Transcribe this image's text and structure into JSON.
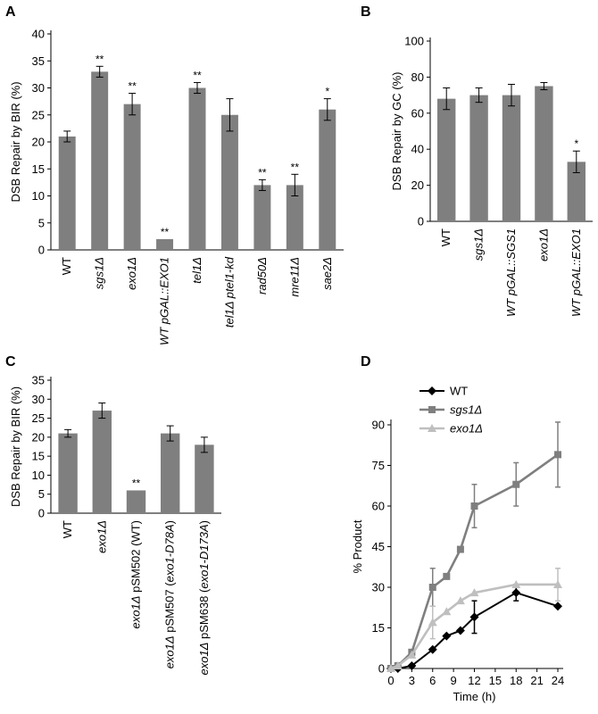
{
  "panels": [
    {
      "id": "A",
      "label": "A"
    },
    {
      "id": "B",
      "label": "B"
    },
    {
      "id": "C",
      "label": "C"
    },
    {
      "id": "D",
      "label": "D"
    }
  ],
  "colors": {
    "bar": "#7f7f7f",
    "wt": "#000000",
    "sgs1": "#7f7f7f",
    "exo1": "#bfbfbf",
    "axis": "#000000"
  },
  "chart_data": [
    {
      "panel": "A",
      "type": "bar",
      "ylabel": "DSB Repair by BIR (%)",
      "ylim": [
        0,
        40
      ],
      "yticks": [
        0,
        5,
        10,
        15,
        20,
        25,
        30,
        35,
        40
      ],
      "categories": [
        [
          {
            "t": "WT",
            "i": false
          }
        ],
        [
          {
            "t": "sgs1Δ",
            "i": true
          }
        ],
        [
          {
            "t": "exo1Δ",
            "i": true
          }
        ],
        [
          {
            "t": "WT pGAL::EXO1",
            "i": true
          }
        ],
        [
          {
            "t": "tel1Δ",
            "i": true
          }
        ],
        [
          {
            "t": "tel1Δ ptel1-kd",
            "i": true
          }
        ],
        [
          {
            "t": "rad50Δ",
            "i": true
          }
        ],
        [
          {
            "t": "mre11Δ",
            "i": true
          }
        ],
        [
          {
            "t": "sae2Δ",
            "i": true
          }
        ]
      ],
      "values": [
        21,
        33,
        27,
        2,
        30,
        25,
        12,
        12,
        26
      ],
      "errors": [
        1,
        1,
        2,
        0,
        1,
        3,
        1,
        2,
        2
      ],
      "significance": [
        "",
        "**",
        "**",
        "**",
        "**",
        "",
        "**",
        "**",
        "*"
      ]
    },
    {
      "panel": "B",
      "type": "bar",
      "ylabel": "DSB Repair by GC (%)",
      "ylim": [
        0,
        100
      ],
      "yticks": [
        0,
        20,
        40,
        60,
        80,
        100
      ],
      "categories": [
        [
          {
            "t": "WT",
            "i": false
          }
        ],
        [
          {
            "t": "sgs1Δ",
            "i": true
          }
        ],
        [
          {
            "t": "WT pGAL::SGS1",
            "i": true
          }
        ],
        [
          {
            "t": "exo1Δ",
            "i": true
          }
        ],
        [
          {
            "t": "WT pGAL::EXO1",
            "i": true
          }
        ]
      ],
      "values": [
        68,
        70,
        70,
        75,
        33
      ],
      "errors": [
        6,
        4,
        6,
        2,
        6
      ],
      "significance": [
        "",
        "",
        "",
        "",
        "*"
      ]
    },
    {
      "panel": "C",
      "type": "bar",
      "ylabel": "DSB Repair by BIR (%)",
      "ylim": [
        0,
        35
      ],
      "yticks": [
        0,
        5,
        10,
        15,
        20,
        25,
        30,
        35
      ],
      "categories": [
        [
          {
            "t": "WT",
            "i": false
          }
        ],
        [
          {
            "t": "exo1Δ",
            "i": true
          }
        ],
        [
          {
            "t": "exo1Δ",
            "i": true
          },
          {
            "t": " pSM502 (WT)",
            "i": false
          }
        ],
        [
          {
            "t": "exo1Δ",
            "i": true
          },
          {
            "t": " pSM507 (",
            "i": false
          },
          {
            "t": "exo1-D78A",
            "i": true
          },
          {
            "t": ")",
            "i": false
          }
        ],
        [
          {
            "t": "exo1Δ",
            "i": true
          },
          {
            "t": " pSM638 (",
            "i": false
          },
          {
            "t": "exo1-D173A",
            "i": true
          },
          {
            "t": ")",
            "i": false
          }
        ]
      ],
      "values": [
        21,
        27,
        6,
        21,
        18
      ],
      "errors": [
        1,
        2,
        0,
        2,
        2
      ],
      "significance": [
        "",
        "",
        "**",
        "",
        ""
      ]
    },
    {
      "panel": "D",
      "type": "line",
      "xlabel": "Time (h)",
      "ylabel": "% Product",
      "xlim": [
        0,
        24
      ],
      "ylim": [
        0,
        90
      ],
      "xticks": [
        0,
        3,
        6,
        9,
        12,
        15,
        18,
        21,
        24
      ],
      "yticks": [
        0,
        15,
        30,
        45,
        60,
        75,
        90
      ],
      "legend_position": "top-left",
      "series": [
        {
          "name": "WT",
          "marker": "diamond",
          "x": [
            0,
            1,
            3,
            6,
            8,
            10,
            12,
            18,
            24
          ],
          "y": [
            0,
            0,
            1,
            7,
            12,
            14,
            19,
            28,
            23
          ],
          "err": [
            0,
            0,
            0,
            0,
            0,
            0,
            6,
            3,
            0
          ]
        },
        {
          "name": "sgs1Δ",
          "marker": "square",
          "x": [
            0,
            1,
            3,
            6,
            8,
            10,
            12,
            18,
            24
          ],
          "y": [
            0,
            1,
            6,
            30,
            34,
            44,
            60,
            68,
            79
          ],
          "err": [
            0,
            0,
            0,
            7,
            0,
            0,
            8,
            8,
            12
          ]
        },
        {
          "name": "exo1Δ",
          "marker": "triangle",
          "x": [
            0,
            1,
            3,
            6,
            8,
            10,
            12,
            18,
            24
          ],
          "y": [
            0,
            1,
            5,
            17,
            21,
            25,
            28,
            31,
            31
          ],
          "err": [
            0,
            0,
            0,
            6,
            0,
            0,
            0,
            0,
            6
          ]
        }
      ]
    }
  ]
}
